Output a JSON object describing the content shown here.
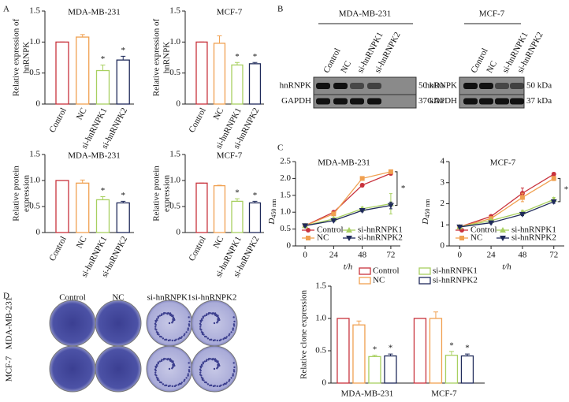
{
  "panel_labels": [
    "A",
    "B",
    "C",
    "D"
  ],
  "chart_data": [
    {
      "type": "bar",
      "title": "MDA-MB-231",
      "ylabel": [
        "Relative expression of",
        "hnRNPK"
      ],
      "categories": [
        "Control",
        "NC",
        "si-hnRNPK1",
        "si-hnRNPK2"
      ],
      "values": [
        1.0,
        1.08,
        0.54,
        0.71
      ],
      "errors": [
        0,
        0.04,
        0.09,
        0.06
      ],
      "annotations": [
        null,
        null,
        "*",
        "*"
      ],
      "colors": [
        "#c8323c",
        "#f0a050",
        "#a8d060",
        "#1f2a5a"
      ],
      "ylim": [
        0,
        1.5
      ],
      "yticks": [
        0,
        0.5,
        {
          "value": 1,
          "label": "1.0"
        },
        1.5
      ]
    },
    {
      "type": "bar",
      "title": "MCF-7",
      "ylabel": [
        "Relative expression of",
        "hnRNPK"
      ],
      "categories": [
        "Control",
        "NC",
        "si-hnRNPK1",
        "si-hnRNPK2"
      ],
      "values": [
        1.0,
        0.98,
        0.63,
        0.65
      ],
      "errors": [
        0,
        0.12,
        0.04,
        0.02
      ],
      "annotations": [
        null,
        null,
        "*",
        "*"
      ],
      "colors": [
        "#c8323c",
        "#f0a050",
        "#a8d060",
        "#1f2a5a"
      ],
      "ylim": [
        0,
        1.5
      ],
      "yticks": [
        0,
        0.5,
        {
          "value": 1,
          "label": "1.0"
        },
        1.5
      ]
    },
    {
      "type": "bar",
      "title": "MDA-MB-231",
      "ylabel": [
        "Relative protein",
        "expression"
      ],
      "categories": [
        "Control",
        "NC",
        "si-hnRNPK1",
        "si-hnRNPK2"
      ],
      "values": [
        1.0,
        0.95,
        0.63,
        0.57
      ],
      "errors": [
        0,
        0.06,
        0.06,
        0.03
      ],
      "annotations": [
        null,
        null,
        "*",
        "*"
      ],
      "colors": [
        "#c8323c",
        "#f0a050",
        "#a8d060",
        "#1f2a5a"
      ],
      "ylim": [
        0,
        1.5
      ],
      "yticks": [
        0,
        0.5,
        {
          "value": 1,
          "label": "1.0"
        },
        1.5
      ]
    },
    {
      "type": "bar",
      "title": "MCF-7",
      "ylabel": [
        "Relative protein",
        "expression"
      ],
      "categories": [
        "Control",
        "NC",
        "si-hnRNPK1",
        "si-hnRNPK2"
      ],
      "values": [
        0.95,
        0.9,
        0.6,
        0.57
      ],
      "errors": [
        0,
        0.01,
        0.05,
        0.03
      ],
      "annotations": [
        null,
        null,
        "*",
        "*"
      ],
      "colors": [
        "#c8323c",
        "#f0a050",
        "#a8d060",
        "#1f2a5a"
      ],
      "ylim": [
        0,
        1.5
      ],
      "yticks": [
        0,
        0.5,
        {
          "value": 1,
          "label": "1.0"
        },
        1.5
      ]
    },
    {
      "type": "line",
      "title": "MDA-MB-231",
      "ylabel": "D",
      "ylabel_sub": "450 nm",
      "xlabel": "t/h",
      "x": [
        0,
        24,
        48,
        72
      ],
      "xlim": [
        -8,
        80
      ],
      "xticks": [
        0,
        24,
        48,
        72
      ],
      "ylim": [
        0,
        2.5
      ],
      "yticks": [
        0,
        0.5,
        {
          "value": 1,
          "label": "1.0"
        },
        1.5,
        {
          "value": 2,
          "label": "2.0"
        },
        2.5
      ],
      "annotation": "*",
      "legend": "lower center",
      "series": [
        {
          "name": "Control",
          "color": "#c8323c",
          "marker": "circle",
          "values": [
            0.6,
            1.0,
            1.8,
            2.15
          ],
          "errors": [
            0.03,
            0.04,
            0.05,
            0.05
          ]
        },
        {
          "name": "NC",
          "color": "#f0a050",
          "marker": "square",
          "values": [
            0.6,
            0.95,
            2.0,
            2.2
          ],
          "errors": [
            0.03,
            0.04,
            0.05,
            0.04
          ]
        },
        {
          "name": "si-hnRNPK1",
          "color": "#a8d060",
          "marker": "triangle-up",
          "values": [
            0.6,
            0.8,
            1.1,
            1.25
          ],
          "errors": [
            0.03,
            0.04,
            0.05,
            0.3
          ]
        },
        {
          "name": "si-hnRNPK2",
          "color": "#1f2a5a",
          "marker": "triangle-down",
          "values": [
            0.6,
            0.75,
            1.05,
            1.2
          ],
          "errors": [
            0.03,
            0.03,
            0.04,
            0.1
          ]
        }
      ]
    },
    {
      "type": "line",
      "title": "MCF-7",
      "ylabel": "D",
      "ylabel_sub": "450 nm",
      "xlabel": "t/h",
      "x": [
        0,
        24,
        48,
        72
      ],
      "xlim": [
        -8,
        80
      ],
      "xticks": [
        0,
        24,
        48,
        72
      ],
      "ylim": [
        0,
        4
      ],
      "yticks": [
        0,
        1,
        2,
        3,
        4
      ],
      "annotation": "*",
      "legend": "lower center",
      "series": [
        {
          "name": "Control",
          "color": "#c8323c",
          "marker": "circle",
          "values": [
            0.9,
            1.4,
            2.5,
            3.4
          ],
          "errors": [
            0.05,
            0.06,
            0.25,
            0.08
          ]
        },
        {
          "name": "NC",
          "color": "#f0a050",
          "marker": "square",
          "values": [
            0.9,
            1.3,
            2.3,
            3.2
          ],
          "errors": [
            0.05,
            0.06,
            0.2,
            0.1
          ]
        },
        {
          "name": "si-hnRNPK1",
          "color": "#a8d060",
          "marker": "triangle-up",
          "values": [
            0.9,
            1.2,
            1.6,
            2.2
          ],
          "errors": [
            0.04,
            0.05,
            0.08,
            0.1
          ]
        },
        {
          "name": "si-hnRNPK2",
          "color": "#1f2a5a",
          "marker": "triangle-down",
          "values": [
            0.9,
            1.1,
            1.5,
            2.1
          ],
          "errors": [
            0.04,
            0.05,
            0.06,
            0.08
          ]
        }
      ]
    },
    {
      "type": "grouped-bar",
      "ylabel": "Relative clone expression",
      "categories": [
        "MDA-MB-231",
        "MCF-7"
      ],
      "ylim": [
        0,
        1.5
      ],
      "yticks": [
        0,
        0.5,
        {
          "value": 1,
          "label": "1.0"
        },
        1.5
      ],
      "legend": "top",
      "series": [
        {
          "name": "Control",
          "color": "#c8323c",
          "values": [
            1.0,
            1.0
          ],
          "errors": [
            0,
            0
          ],
          "annotations": [
            null,
            null
          ]
        },
        {
          "name": "NC",
          "color": "#f0a050",
          "values": [
            0.9,
            1.0
          ],
          "errors": [
            0.06,
            0.1
          ],
          "annotations": [
            null,
            null
          ]
        },
        {
          "name": "si-hnRNPK1",
          "color": "#a8d060",
          "values": [
            0.41,
            0.43
          ],
          "errors": [
            0.02,
            0.06
          ],
          "annotations": [
            "*",
            "*"
          ]
        },
        {
          "name": "si-hnRNPK2",
          "color": "#1f2a5a",
          "values": [
            0.42,
            0.42
          ],
          "errors": [
            0.03,
            0.03
          ],
          "annotations": [
            "*",
            "*"
          ]
        }
      ]
    }
  ],
  "blot": {
    "cell_lines": [
      {
        "name": "MDA-MB-231",
        "lanes": [
          "Control",
          "NC",
          "si-hnRNPK1",
          "si-hnRNPK2"
        ]
      },
      {
        "name": "MCF-7",
        "lanes": [
          "Control",
          "NC",
          "si-hnRNPK1",
          "si-hnRNPK2"
        ]
      }
    ],
    "rows": [
      {
        "protein": "hnRNPK",
        "size": "50 kDa"
      },
      {
        "protein": "GAPDH",
        "size": "37 kDa"
      }
    ]
  },
  "colony": {
    "columns": [
      "Control",
      "NC",
      "si-hnRNPK1",
      "si-hnRNPK2"
    ],
    "rows": [
      "MDA-MB-231",
      "MCF-7"
    ]
  }
}
